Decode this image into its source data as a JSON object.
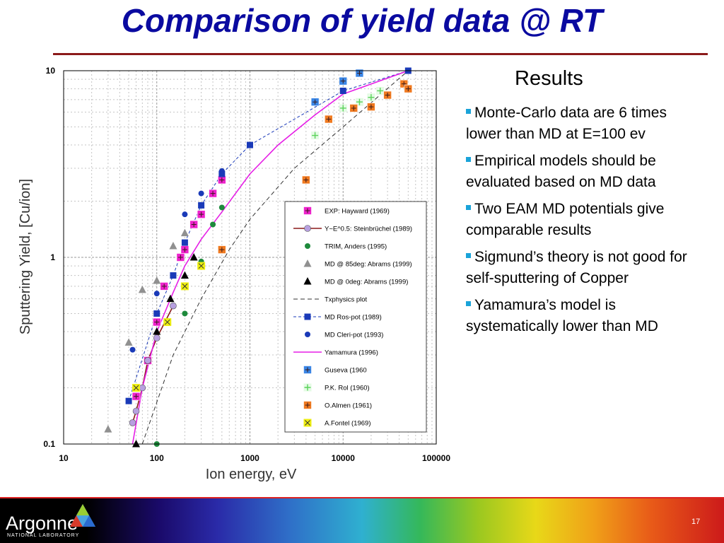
{
  "title": "Comparison of yield data @ RT",
  "results_heading": "Results",
  "bullets": [
    "Monte-Carlo data are 6 times lower than MD at E=100 ev",
    "Empirical models should be evaluated based on MD data",
    "Two EAM MD potentials give comparable results",
    "Sigmund’s theory is not good for self-sputtering of Copper",
    "Yamamura’s model is systematically lower than MD"
  ],
  "footer": {
    "logo": "Argonne",
    "logo_sub": "NATIONAL LABORATORY",
    "page": "17"
  },
  "colors": {
    "title": "#0a0aa0",
    "bullet_square": "#1aa3d9",
    "rule": "#8b1a1a"
  },
  "chart_data": {
    "type": "scatter",
    "xlabel": "Ion energy, eV",
    "ylabel": "Sputtering Yield, [Cu/ion]",
    "x_scale": "log",
    "y_scale": "log",
    "xlim": [
      10,
      100000
    ],
    "ylim": [
      0.1,
      10
    ],
    "x_ticks": [
      "10",
      "100",
      "1000",
      "10000",
      "100000"
    ],
    "y_ticks": [
      "0.1",
      "1",
      "10"
    ],
    "grid": true,
    "legend_position": "right-inside",
    "series": [
      {
        "name": "EXP: Hayward (1969)",
        "marker": "square-plus",
        "color": "#ee22cc",
        "x": [
          60,
          80,
          100,
          120,
          180,
          200,
          250,
          300,
          400,
          500
        ],
        "y": [
          0.18,
          0.28,
          0.45,
          0.7,
          1.0,
          1.1,
          1.5,
          1.7,
          2.2,
          2.6
        ]
      },
      {
        "name": "Y~E^0.5: Steinbrüchel (1989)",
        "marker": "circle",
        "color": "#b7a0e0",
        "line": "#8b1a1a",
        "x": [
          55,
          60,
          70,
          80,
          100,
          150
        ],
        "y": [
          0.13,
          0.15,
          0.2,
          0.28,
          0.37,
          0.55
        ]
      },
      {
        "name": "TRIM, Anders (1995)",
        "marker": "dot",
        "color": "#1e8a3c",
        "x": [
          100,
          200,
          300,
          400,
          500
        ],
        "y": [
          0.1,
          0.5,
          0.95,
          1.5,
          1.85
        ]
      },
      {
        "name": "MD @ 85deg: Abrams (1999)",
        "marker": "triangle",
        "color": "#909090",
        "x": [
          30,
          50,
          70,
          100,
          150,
          200
        ],
        "y": [
          0.12,
          0.35,
          0.67,
          0.75,
          1.15,
          1.35
        ]
      },
      {
        "name": "MD @ 0deg: Abrams (1999)",
        "marker": "triangle",
        "color": "#000000",
        "x": [
          60,
          100,
          140,
          200,
          250
        ],
        "y": [
          0.1,
          0.4,
          0.6,
          0.8,
          1.0
        ]
      },
      {
        "name": "Txphysics plot",
        "marker": "none",
        "line": "#333333",
        "dash": "6,4",
        "x": [
          70,
          150,
          300,
          600,
          1000,
          3000,
          10000,
          50000
        ],
        "y": [
          0.1,
          0.3,
          0.6,
          1.1,
          1.6,
          3.0,
          5.0,
          10.0
        ]
      },
      {
        "name": "MD Ros-pot (1989)",
        "marker": "square",
        "color": "#1a3ab8",
        "line": "#1a3ab8",
        "dash": "4,3",
        "x": [
          50,
          100,
          150,
          200,
          300,
          500,
          1000,
          10000,
          50000
        ],
        "y": [
          0.17,
          0.5,
          0.8,
          1.2,
          1.9,
          2.8,
          4.0,
          7.8,
          10.0
        ]
      },
      {
        "name": "MD Cleri-pot (1993)",
        "marker": "dot",
        "color": "#1a3ab8",
        "x": [
          55,
          100,
          200,
          300,
          500
        ],
        "y": [
          0.32,
          0.64,
          1.7,
          2.2,
          2.9
        ]
      },
      {
        "name": "Yamamura (1996)",
        "marker": "none",
        "line": "#e61ee6",
        "x": [
          55,
          70,
          100,
          150,
          200,
          300,
          500,
          1000,
          2000,
          5000,
          10000,
          50000
        ],
        "y": [
          0.1,
          0.2,
          0.4,
          0.65,
          0.9,
          1.25,
          1.75,
          2.8,
          4.0,
          5.8,
          7.5,
          10.0
        ]
      },
      {
        "name": "Guseva (1960",
        "marker": "square-plus",
        "color": "#3a86e6",
        "x": [
          5000,
          10000,
          15000
        ],
        "y": [
          6.8,
          8.8,
          9.7
        ]
      },
      {
        "name": "P.K. Rol (1960)",
        "marker": "plus",
        "color": "#5ad25a",
        "x": [
          5000,
          10000,
          15000,
          20000,
          25000
        ],
        "y": [
          4.5,
          6.3,
          6.8,
          7.2,
          7.8
        ]
      },
      {
        "name": "O.Almen (1961)",
        "marker": "square-plus",
        "color": "#f07a20",
        "x": [
          500,
          4000,
          7000,
          13000,
          20000,
          30000,
          45000,
          50000
        ],
        "y": [
          1.1,
          2.6,
          5.5,
          6.3,
          6.4,
          7.4,
          8.5,
          8.0
        ]
      },
      {
        "name": "A.Fontel (1969)",
        "marker": "x-box",
        "color": "#eeee10",
        "x": [
          60,
          130,
          200,
          300
        ],
        "y": [
          0.2,
          0.45,
          0.7,
          0.9
        ]
      }
    ]
  }
}
